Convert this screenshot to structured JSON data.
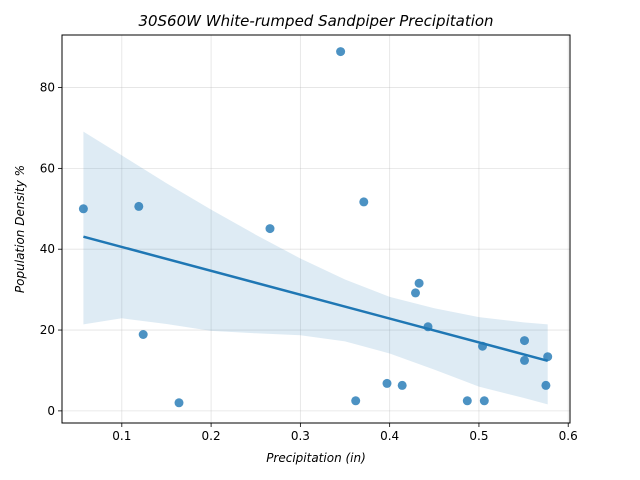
{
  "chart_data": {
    "type": "scatter",
    "title": "30S60W White-rumped Sandpiper Precipitation",
    "xlabel": "Precipitation (in)",
    "ylabel": "Population Density %",
    "xlim": [
      0.033,
      0.602
    ],
    "ylim": [
      -3,
      93
    ],
    "xticks": [
      0.1,
      0.2,
      0.3,
      0.4,
      0.5,
      0.6
    ],
    "xtick_labels": [
      "0.1",
      "0.2",
      "0.3",
      "0.4",
      "0.5",
      "0.6"
    ],
    "yticks": [
      0,
      20,
      40,
      60,
      80
    ],
    "ytick_labels": [
      "0",
      "20",
      "40",
      "60",
      "80"
    ],
    "grid": true,
    "points": [
      {
        "x": 0.057,
        "y": 50.0
      },
      {
        "x": 0.119,
        "y": 50.6
      },
      {
        "x": 0.124,
        "y": 18.9
      },
      {
        "x": 0.164,
        "y": 2.0
      },
      {
        "x": 0.266,
        "y": 45.1
      },
      {
        "x": 0.345,
        "y": 88.9
      },
      {
        "x": 0.362,
        "y": 2.5
      },
      {
        "x": 0.371,
        "y": 51.7
      },
      {
        "x": 0.397,
        "y": 6.8
      },
      {
        "x": 0.414,
        "y": 6.3
      },
      {
        "x": 0.429,
        "y": 29.2
      },
      {
        "x": 0.433,
        "y": 31.6
      },
      {
        "x": 0.443,
        "y": 20.8
      },
      {
        "x": 0.487,
        "y": 2.5
      },
      {
        "x": 0.504,
        "y": 16.0
      },
      {
        "x": 0.506,
        "y": 2.5
      },
      {
        "x": 0.551,
        "y": 17.4
      },
      {
        "x": 0.551,
        "y": 12.5
      },
      {
        "x": 0.575,
        "y": 6.3
      },
      {
        "x": 0.577,
        "y": 13.4
      }
    ],
    "regression": {
      "x": [
        0.057,
        0.577
      ],
      "y": [
        43.1,
        12.4
      ]
    },
    "confidence_band": {
      "x": [
        0.057,
        0.1,
        0.15,
        0.2,
        0.25,
        0.3,
        0.35,
        0.4,
        0.45,
        0.5,
        0.55,
        0.577
      ],
      "upper": [
        69.1,
        63.2,
        56.3,
        49.8,
        43.6,
        37.7,
        32.5,
        28.2,
        25.4,
        23.2,
        21.9,
        21.4
      ],
      "lower": [
        21.4,
        22.9,
        21.5,
        19.8,
        19.2,
        18.7,
        17.2,
        14.2,
        10.2,
        6.0,
        3.2,
        1.6
      ]
    },
    "colors": {
      "series": "#1f77b4"
    }
  }
}
